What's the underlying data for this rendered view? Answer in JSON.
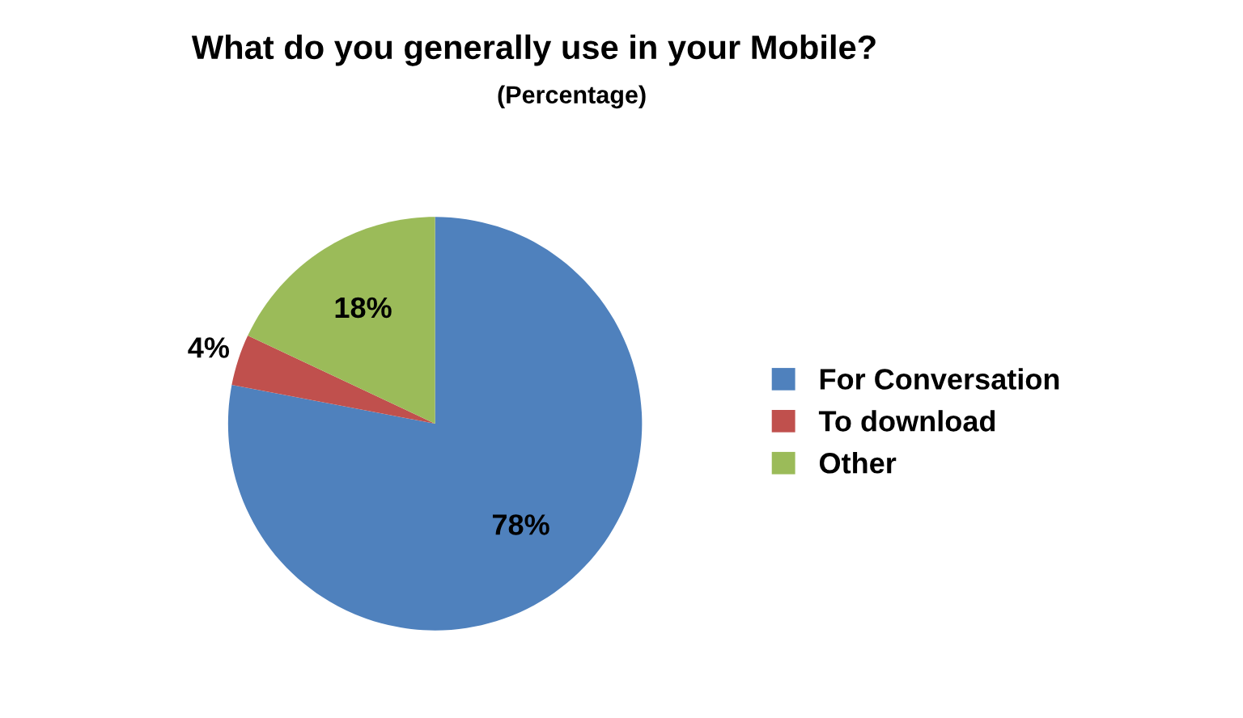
{
  "chart_data": {
    "type": "pie",
    "title": "What do you generally use in your Mobile?",
    "subtitle": "(Percentage)",
    "categories": [
      "For Conversation",
      "To download",
      "Other"
    ],
    "values": [
      78,
      4,
      18
    ],
    "colors": [
      "#4f81bd",
      "#c0504d",
      "#9bbb59"
    ],
    "value_labels": [
      "78%",
      "4%",
      "18%"
    ],
    "legend": "right"
  }
}
